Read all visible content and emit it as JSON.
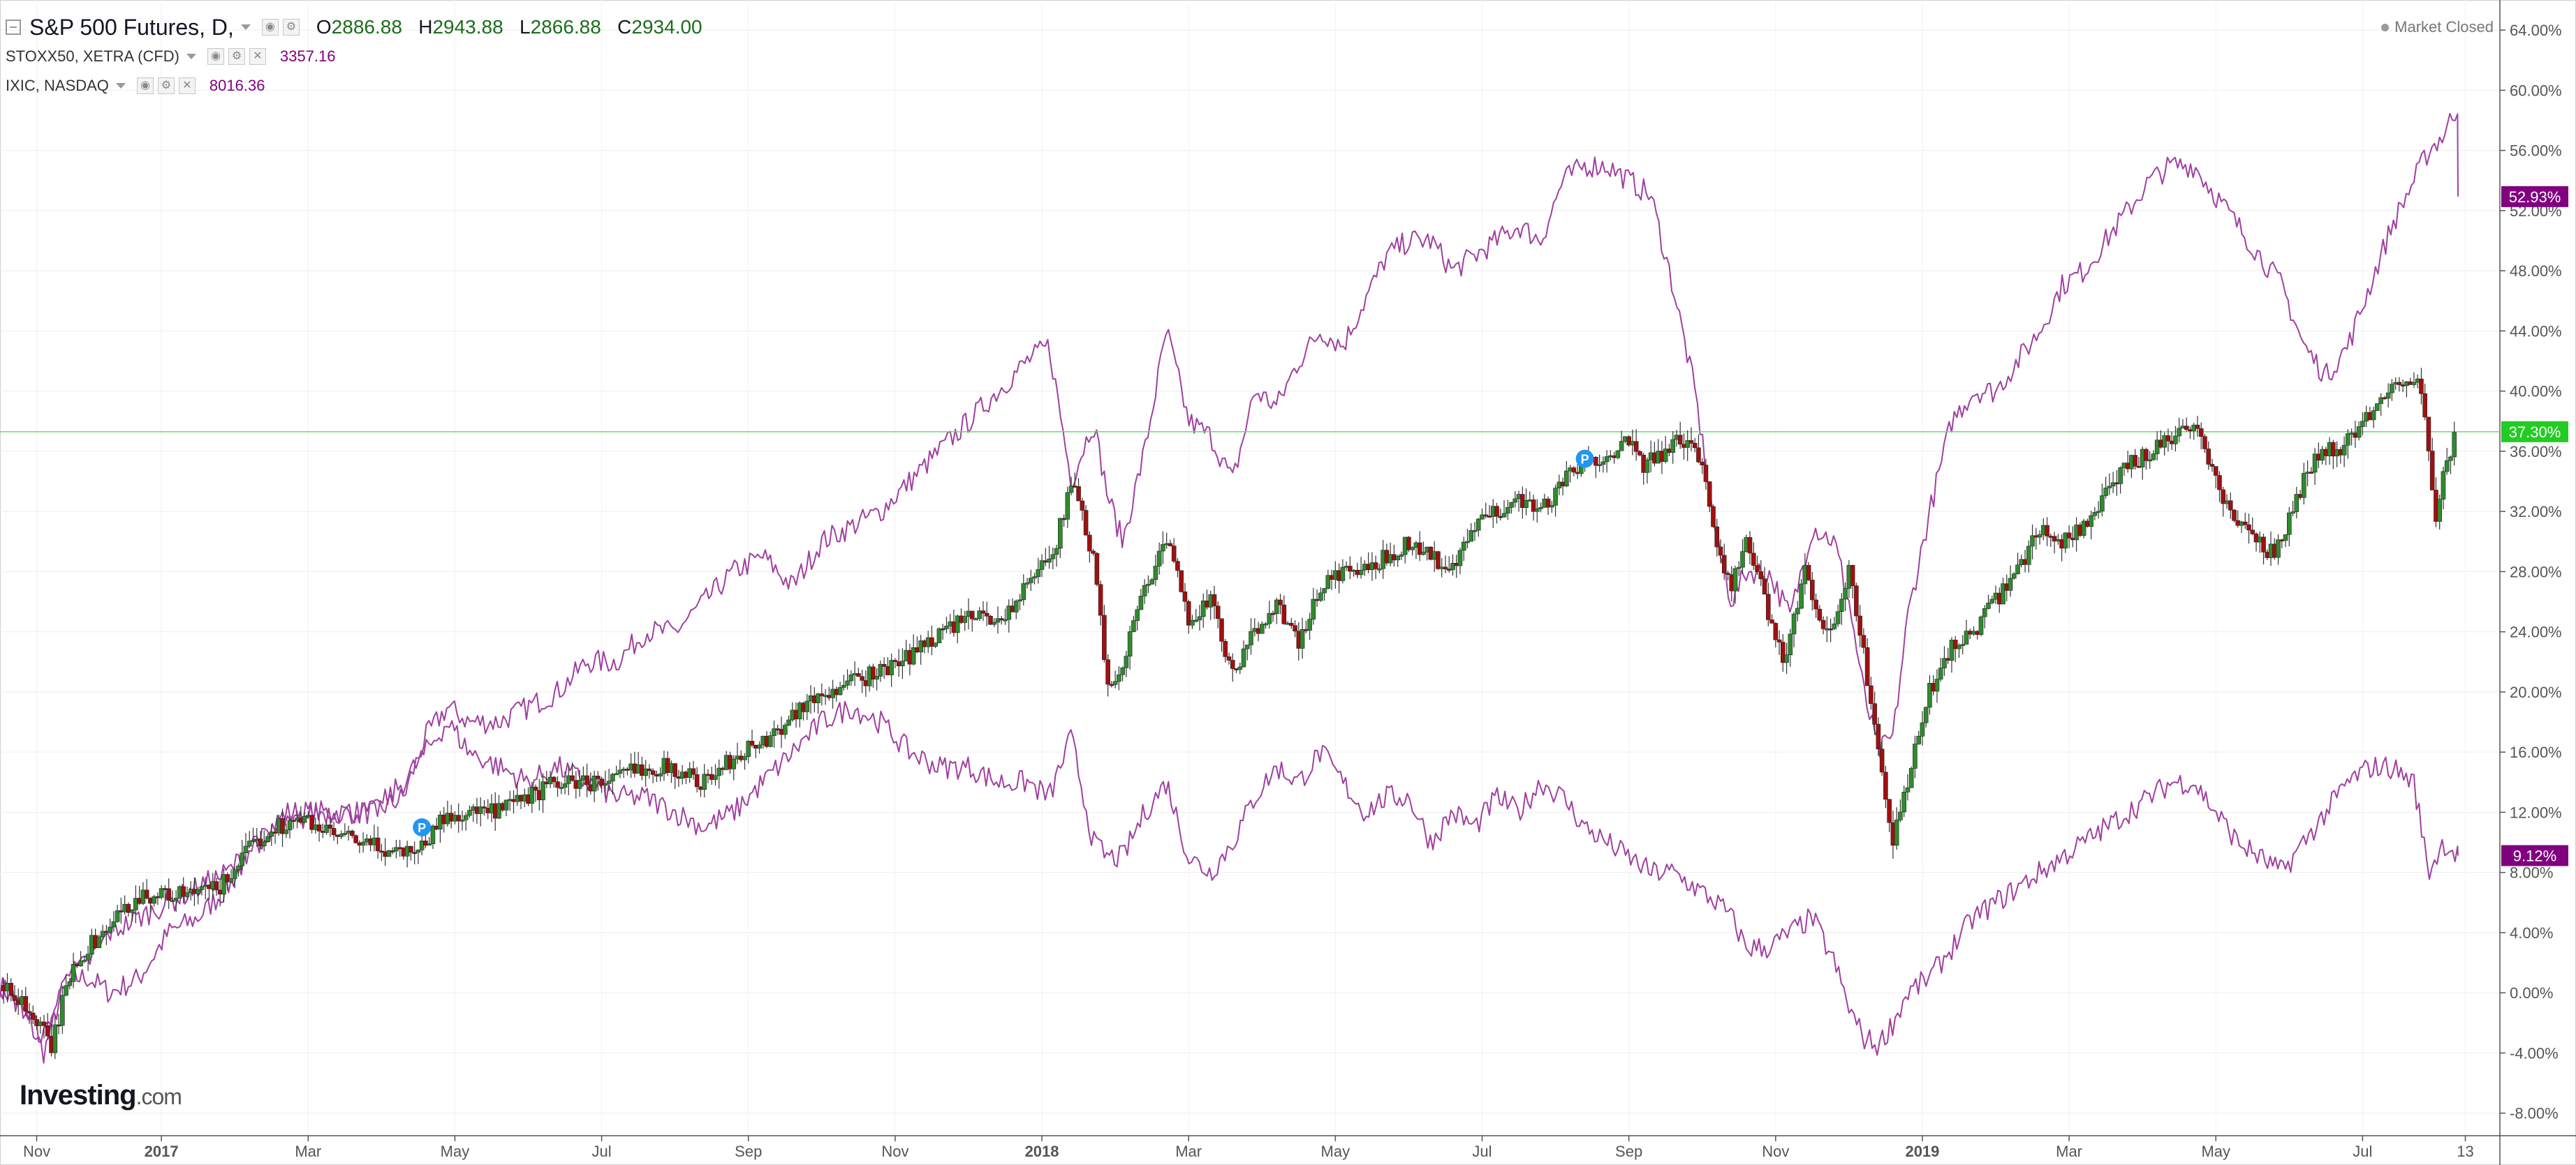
{
  "header": {
    "main_series": "S&P 500 Futures, D,",
    "ohlc": [
      {
        "key": "O",
        "value": "2886.88"
      },
      {
        "key": "H",
        "value": "2943.88"
      },
      {
        "key": "L",
        "value": "2866.88"
      },
      {
        "key": "C",
        "value": "2934.00"
      }
    ],
    "compare_series": [
      {
        "label": "STOXX50, XETRA (CFD)",
        "value": "3357.16"
      },
      {
        "label": "IXIC, NASDAQ",
        "value": "8016.36"
      }
    ],
    "market_status": "Market Closed"
  },
  "logo": {
    "main": "Investing",
    "suffix": ".com"
  },
  "colors": {
    "up_candle": "#2e8b2e",
    "down_candle": "#a01010",
    "compare_line": "#a040a0",
    "badge_purple": "#800080",
    "badge_green": "#22cc22",
    "current_price_line": "#66dd66",
    "event_marker": "#2196f3"
  },
  "chart_data": {
    "type": "line",
    "title": "S&P 500 Futures, D,",
    "ylabel": "",
    "xlabel": "",
    "y_unit": "%",
    "ylim": [
      -9.5,
      66
    ],
    "y_ticks": [
      "64.00%",
      "60.00%",
      "56.00%",
      "52.00%",
      "48.00%",
      "44.00%",
      "40.00%",
      "36.00%",
      "32.00%",
      "28.00%",
      "24.00%",
      "20.00%",
      "16.00%",
      "12.00%",
      "8.00%",
      "4.00%",
      "0.00%",
      "-4.00%",
      "-8.00%"
    ],
    "y_tick_values": [
      64,
      60,
      56,
      52,
      48,
      44,
      40,
      36,
      32,
      28,
      24,
      20,
      16,
      12,
      8,
      4,
      0,
      -4,
      -8
    ],
    "x_ticks": [
      {
        "label": "Nov",
        "t": 0.5,
        "bold": false
      },
      {
        "label": "2017",
        "t": 2.2,
        "bold": true
      },
      {
        "label": "Mar",
        "t": 4.2,
        "bold": false
      },
      {
        "label": "May",
        "t": 6.2,
        "bold": false
      },
      {
        "label": "Jul",
        "t": 8.2,
        "bold": false
      },
      {
        "label": "Sep",
        "t": 10.2,
        "bold": false
      },
      {
        "label": "Nov",
        "t": 12.2,
        "bold": false
      },
      {
        "label": "2018",
        "t": 14.2,
        "bold": true
      },
      {
        "label": "Mar",
        "t": 16.2,
        "bold": false
      },
      {
        "label": "May",
        "t": 18.2,
        "bold": false
      },
      {
        "label": "Jul",
        "t": 20.2,
        "bold": false
      },
      {
        "label": "Sep",
        "t": 22.2,
        "bold": false
      },
      {
        "label": "Nov",
        "t": 24.2,
        "bold": false
      },
      {
        "label": "2019",
        "t": 26.2,
        "bold": true
      },
      {
        "label": "Mar",
        "t": 28.2,
        "bold": false
      },
      {
        "label": "May",
        "t": 30.2,
        "bold": false
      },
      {
        "label": "Jul",
        "t": 32.2,
        "bold": false
      },
      {
        "label": "13",
        "t": 33.6,
        "bold": false
      }
    ],
    "xlim": [
      0,
      33.9
    ],
    "grid": true,
    "current_price_level": 37.3,
    "last_value_badges": [
      {
        "value": 52.93,
        "label": "52.93%",
        "color": "#800080"
      },
      {
        "value": 37.3,
        "label": "37.30%",
        "color": "#22cc22"
      },
      {
        "value": 9.12,
        "label": "9.12%",
        "color": "#800080"
      }
    ],
    "event_markers": [
      {
        "t": 5.75,
        "value": 11.0,
        "label": "P"
      },
      {
        "t": 21.6,
        "value": 35.5,
        "label": "P"
      }
    ],
    "series": [
      {
        "name": "S&P 500 Futures",
        "style": "candlestick",
        "anchors_t": [
          0,
          0.3,
          0.5,
          0.7,
          1.0,
          1.3,
          1.6,
          1.9,
          2.2,
          2.6,
          3.0,
          3.3,
          3.7,
          4.2,
          4.5,
          4.9,
          5.3,
          5.6,
          5.8,
          6.0,
          6.4,
          6.8,
          7.2,
          7.6,
          8.0,
          8.3,
          8.7,
          9.1,
          9.6,
          10.1,
          10.5,
          10.9,
          11.3,
          11.8,
          12.3,
          12.8,
          13.3,
          13.7,
          14.0,
          14.4,
          14.6,
          14.9,
          15.1,
          15.3,
          15.6,
          15.9,
          16.2,
          16.5,
          16.8,
          17.1,
          17.4,
          17.7,
          18.0,
          18.3,
          18.6,
          18.9,
          19.2,
          19.5,
          19.8,
          20.1,
          20.4,
          20.7,
          21.0,
          21.3,
          21.6,
          21.9,
          22.2,
          22.4,
          22.7,
          23.0,
          23.2,
          23.4,
          23.6,
          23.8,
          24.0,
          24.3,
          24.6,
          24.8,
          25.0,
          25.2,
          25.45,
          25.6,
          25.8,
          26.0,
          26.3,
          26.6,
          26.9,
          27.2,
          27.5,
          27.8,
          28.1,
          28.4,
          28.7,
          29.0,
          29.3,
          29.6,
          29.9,
          30.2,
          30.5,
          30.8,
          31.0,
          31.3,
          31.6,
          31.9,
          32.2,
          32.5,
          32.8,
          33.0,
          33.2,
          33.3,
          33.5
        ],
        "anchors_v": [
          0.5,
          -0.5,
          -2,
          -3.5,
          2,
          3.5,
          5,
          6.5,
          6.5,
          6.5,
          7,
          9,
          11,
          11.5,
          10.5,
          10,
          9.5,
          9.5,
          10,
          11.5,
          12,
          12,
          13,
          14,
          14,
          14,
          15,
          15,
          14,
          16,
          17,
          19,
          20,
          21,
          22,
          24,
          25,
          25,
          27,
          30,
          34,
          29,
          20,
          22,
          27,
          30,
          25,
          26,
          21,
          24,
          26,
          23,
          27,
          28,
          28,
          29,
          30,
          29,
          28,
          31,
          32,
          33,
          32,
          34,
          35,
          36,
          36.5,
          35,
          36,
          37,
          35,
          30,
          27,
          30,
          27,
          22,
          28,
          25,
          24,
          28,
          21,
          16,
          10,
          14,
          20,
          23,
          24,
          26,
          28,
          31,
          30,
          31,
          33,
          35,
          36,
          37,
          38,
          34,
          31,
          30,
          29,
          33,
          36,
          36,
          38,
          40,
          41,
          40,
          31,
          35,
          37.3
        ]
      },
      {
        "name": "IXIC, NASDAQ",
        "style": "line",
        "anchors_t": [
          0,
          0.3,
          0.6,
          0.9,
          1.2,
          1.5,
          1.9,
          2.3,
          2.7,
          3.1,
          3.5,
          3.9,
          4.3,
          4.7,
          5.1,
          5.5,
          5.8,
          6.1,
          6.4,
          6.8,
          7.2,
          7.6,
          8.0,
          8.4,
          8.8,
          9.2,
          9.6,
          10.0,
          10.4,
          10.8,
          11.2,
          11.6,
          12.0,
          12.4,
          12.8,
          13.2,
          13.6,
          14.0,
          14.3,
          14.6,
          14.9,
          15.1,
          15.3,
          15.6,
          15.9,
          16.2,
          16.5,
          16.8,
          17.1,
          17.4,
          17.7,
          18.0,
          18.3,
          18.6,
          18.9,
          19.2,
          19.5,
          19.8,
          20.1,
          20.4,
          20.7,
          21.0,
          21.3,
          21.6,
          21.9,
          22.2,
          22.5,
          22.8,
          23.1,
          23.4,
          23.6,
          23.8,
          24.1,
          24.4,
          24.7,
          25.0,
          25.2,
          25.4,
          25.6,
          25.8,
          26.0,
          26.3,
          26.6,
          26.9,
          27.2,
          27.5,
          27.8,
          28.1,
          28.4,
          28.7,
          29.0,
          29.3,
          29.6,
          29.9,
          30.2,
          30.5,
          30.8,
          31.1,
          31.4,
          31.7,
          32.0,
          32.3,
          32.6,
          32.9,
          33.1,
          33.3,
          33.5
        ],
        "anchors_v": [
          0.5,
          -1,
          -4,
          1,
          1,
          0,
          1,
          4,
          5,
          7,
          10,
          12,
          12,
          12,
          12,
          13,
          17,
          19,
          18,
          18,
          19,
          20,
          22,
          22,
          24,
          24,
          26,
          28,
          29,
          27,
          30,
          31,
          32,
          34,
          36,
          38,
          40,
          42,
          43,
          34,
          38,
          33,
          30,
          36,
          44,
          38,
          37,
          34,
          40,
          39,
          42,
          44,
          43,
          46,
          49,
          50,
          50,
          48,
          49,
          50,
          51,
          50,
          54,
          55,
          55,
          54,
          53,
          47,
          40,
          30,
          26,
          28,
          28,
          25,
          31,
          30,
          26,
          20,
          16,
          17,
          25,
          32,
          38,
          40,
          40,
          42,
          44,
          47,
          48,
          50,
          52,
          54,
          55,
          55,
          53,
          51,
          49,
          47,
          43,
          41,
          43,
          47,
          51,
          54,
          56,
          57,
          59,
          55,
          48,
          53,
          52.93
        ]
      },
      {
        "name": "STOXX50, XETRA (CFD)",
        "style": "line",
        "anchors_t": [
          0,
          0.3,
          0.6,
          0.9,
          1.2,
          1.5,
          1.9,
          2.3,
          2.7,
          3.1,
          3.5,
          3.9,
          4.3,
          4.7,
          5.1,
          5.5,
          5.8,
          6.1,
          6.4,
          6.8,
          7.2,
          7.6,
          8.0,
          8.4,
          8.8,
          9.2,
          9.6,
          10.0,
          10.4,
          10.8,
          11.2,
          11.6,
          12.0,
          12.4,
          12.8,
          13.2,
          13.6,
          14.0,
          14.3,
          14.6,
          14.9,
          15.1,
          15.3,
          15.6,
          15.9,
          16.2,
          16.5,
          16.8,
          17.1,
          17.4,
          17.7,
          18.0,
          18.3,
          18.6,
          18.9,
          19.2,
          19.5,
          19.8,
          20.1,
          20.4,
          20.7,
          21.0,
          21.3,
          21.6,
          21.9,
          22.2,
          22.5,
          22.8,
          23.1,
          23.4,
          23.6,
          23.8,
          24.1,
          24.4,
          24.7,
          25.0,
          25.2,
          25.4,
          25.6,
          25.8,
          26.0,
          26.3,
          26.6,
          26.9,
          27.2,
          27.5,
          27.8,
          28.1,
          28.4,
          28.7,
          29.0,
          29.3,
          29.6,
          29.9,
          30.2,
          30.5,
          30.8,
          31.1,
          31.4,
          31.7,
          32.0,
          32.3,
          32.6,
          32.9,
          33.1,
          33.3,
          33.5
        ],
        "anchors_v": [
          0.5,
          -1,
          -3,
          1,
          2,
          4,
          5,
          6,
          7,
          8,
          10,
          11,
          12,
          12,
          12,
          14,
          16,
          18,
          16,
          15,
          14,
          15,
          14,
          13,
          13,
          12,
          11,
          12,
          14,
          16,
          18,
          19,
          18,
          16,
          15,
          15,
          14,
          14,
          13,
          17,
          10,
          9,
          9,
          12,
          14,
          9,
          8,
          10,
          13,
          15,
          14,
          16,
          14,
          12,
          13,
          13,
          10,
          12,
          11,
          13,
          12,
          14,
          13,
          11,
          10,
          9,
          8,
          8,
          7,
          6,
          5,
          3,
          3,
          4,
          5,
          2,
          -1,
          -3,
          -3.5,
          -2,
          0,
          1,
          3,
          5,
          6,
          7,
          8,
          9,
          10,
          11,
          12,
          13,
          14,
          14,
          12,
          10,
          9,
          8,
          10,
          12,
          14,
          15,
          15,
          14,
          8,
          10,
          9.12
        ]
      }
    ]
  }
}
